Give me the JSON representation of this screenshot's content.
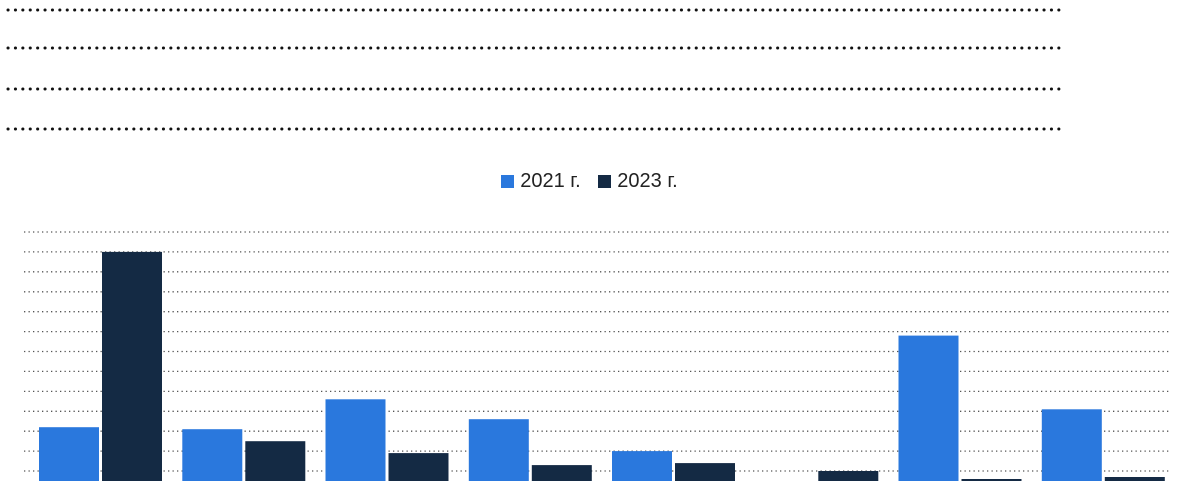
{
  "chart_data": {
    "type": "bar",
    "categories": [
      "",
      "",
      "",
      "",
      "",
      "",
      "",
      ""
    ],
    "series": [
      {
        "name": "2021 г.",
        "color": "#2a78dd",
        "values": [
          2.7,
          2.6,
          4.1,
          3.1,
          1.5,
          0,
          7.3,
          3.6
        ]
      },
      {
        "name": "2023 г.",
        "color": "#142a44",
        "values": [
          11.5,
          2.0,
          1.4,
          0.8,
          0.9,
          0.5,
          0.1,
          0.2
        ]
      }
    ],
    "ylim": [
      0,
      12.5
    ],
    "gridlines": 13,
    "grid": true,
    "legend_position": "top-center",
    "title": "",
    "xlabel": "",
    "ylabel": ""
  }
}
